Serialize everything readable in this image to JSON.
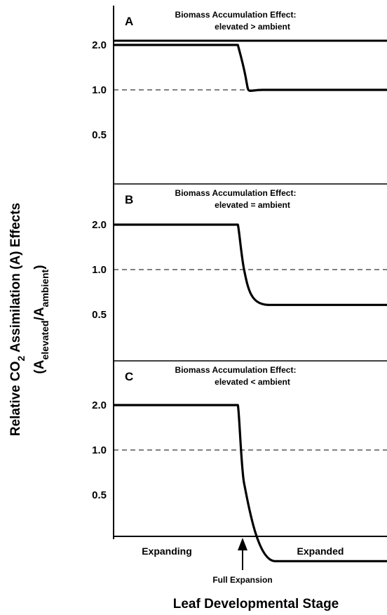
{
  "chart_data": [
    {
      "type": "line",
      "panel": "A",
      "title_line1": "Biomass Accumulation Effect:",
      "title_line2": "elevated > ambient",
      "yticks": [
        "2.0",
        "1.0",
        "0.5"
      ],
      "reference_line": 1.0,
      "series": [
        {
          "x": [
            0,
            1.0,
            1.06,
            1.2,
            2.2
          ],
          "y": [
            2.0,
            2.0,
            1.25,
            1.0,
            1.0
          ]
        }
      ]
    },
    {
      "type": "line",
      "panel": "B",
      "title_line1": "Biomass Accumulation Effect:",
      "title_line2": "elevated = ambient",
      "yticks": [
        "2.0",
        "1.0",
        "0.5"
      ],
      "reference_line": 1.0,
      "series": [
        {
          "x": [
            0,
            1.0,
            1.05,
            1.25,
            2.2
          ],
          "y": [
            2.0,
            2.0,
            1.0,
            0.58,
            0.58
          ]
        }
      ]
    },
    {
      "type": "line",
      "panel": "C",
      "title_line1": "Biomass Accumulation Effect:",
      "title_line2": "elevated < ambient",
      "yticks": [
        "2.0",
        "1.0",
        "0.5"
      ],
      "reference_line": 1.0,
      "series": [
        {
          "x": [
            0,
            1.0,
            1.05,
            1.3,
            2.2
          ],
          "y": [
            2.0,
            2.0,
            0.6,
            0.18,
            0.18
          ]
        }
      ]
    }
  ],
  "x_categories": [
    "Expanding",
    "Expanded"
  ],
  "marker_label": "Full Expansion",
  "x_axis_title": "Leaf Developmental Stage",
  "y_axis_title": {
    "part1": "Relative CO",
    "co2_subscript": "2",
    "part2": " Assimilation (A) Effects",
    "ratio_open": "(A",
    "numerator_subscript": "elevated",
    "slash": "/A",
    "denominator_subscript": "ambient",
    "ratio_close": ")"
  },
  "colors": {
    "line": "#000000",
    "background": "#ffffff"
  }
}
